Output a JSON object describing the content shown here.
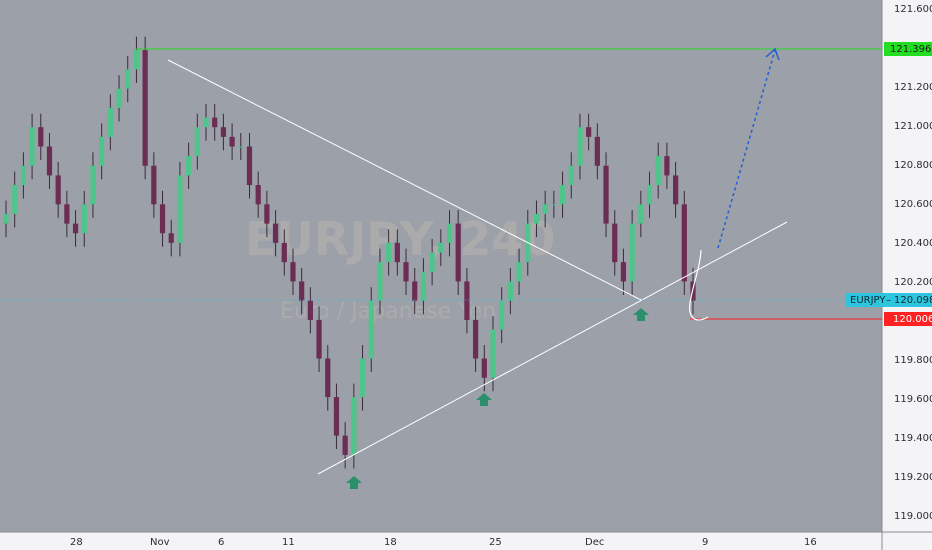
{
  "chart_data": {
    "type": "candlestick",
    "symbol_label": "EURJPY",
    "watermark": {
      "symbol": "EURJPY, 240",
      "description": "Euro / Japanese Yen"
    },
    "y_ticks": [
      "121.600",
      "121.400",
      "121.200",
      "121.000",
      "120.800",
      "120.600",
      "120.400",
      "120.200",
      "120.000",
      "119.800",
      "119.600",
      "119.400",
      "119.200",
      "119.000"
    ],
    "x_ticks": [
      "28",
      "Nov",
      "6",
      "11",
      "18",
      "25",
      "Dec",
      "9",
      "16"
    ],
    "ylim": [
      118.9,
      121.66
    ],
    "last_price": {
      "label": "EURJPY",
      "value": "120.098",
      "color": "#2ec6de"
    },
    "target_level": {
      "value": "121.396",
      "color": "#22dd22"
    },
    "stop_level": {
      "value": "120.006",
      "color": "#ff2222"
    },
    "colors": {
      "up": "#4fc48b",
      "down": "#6b2d54",
      "line": "#ffffff",
      "arrow": "#1f5fd0",
      "marker": "#2c8f6c"
    },
    "candles_close": [
      120.55,
      120.7,
      120.8,
      121.0,
      120.9,
      120.75,
      120.6,
      120.5,
      120.45,
      120.6,
      120.8,
      120.95,
      121.1,
      121.2,
      121.3,
      121.4,
      120.8,
      120.6,
      120.45,
      120.4,
      120.75,
      120.85,
      121.0,
      121.05,
      121.0,
      120.95,
      120.9,
      120.9,
      120.7,
      120.6,
      120.5,
      120.4,
      120.3,
      120.2,
      120.1,
      120.0,
      119.8,
      119.6,
      119.4,
      119.3,
      119.6,
      119.8,
      120.1,
      120.3,
      120.4,
      120.3,
      120.2,
      120.1,
      120.25,
      120.35,
      120.4,
      120.5,
      120.2,
      120.0,
      119.8,
      119.7,
      119.95,
      120.1,
      120.2,
      120.3,
      120.5,
      120.55,
      120.6,
      120.6,
      120.7,
      120.8,
      121.0,
      120.95,
      120.8,
      120.5,
      120.3,
      120.2,
      120.5,
      120.6,
      120.7,
      120.85,
      120.75,
      120.6,
      120.2,
      120.1
    ],
    "patterns": [
      "symmetrical triangle",
      "bullish projection to target"
    ]
  }
}
